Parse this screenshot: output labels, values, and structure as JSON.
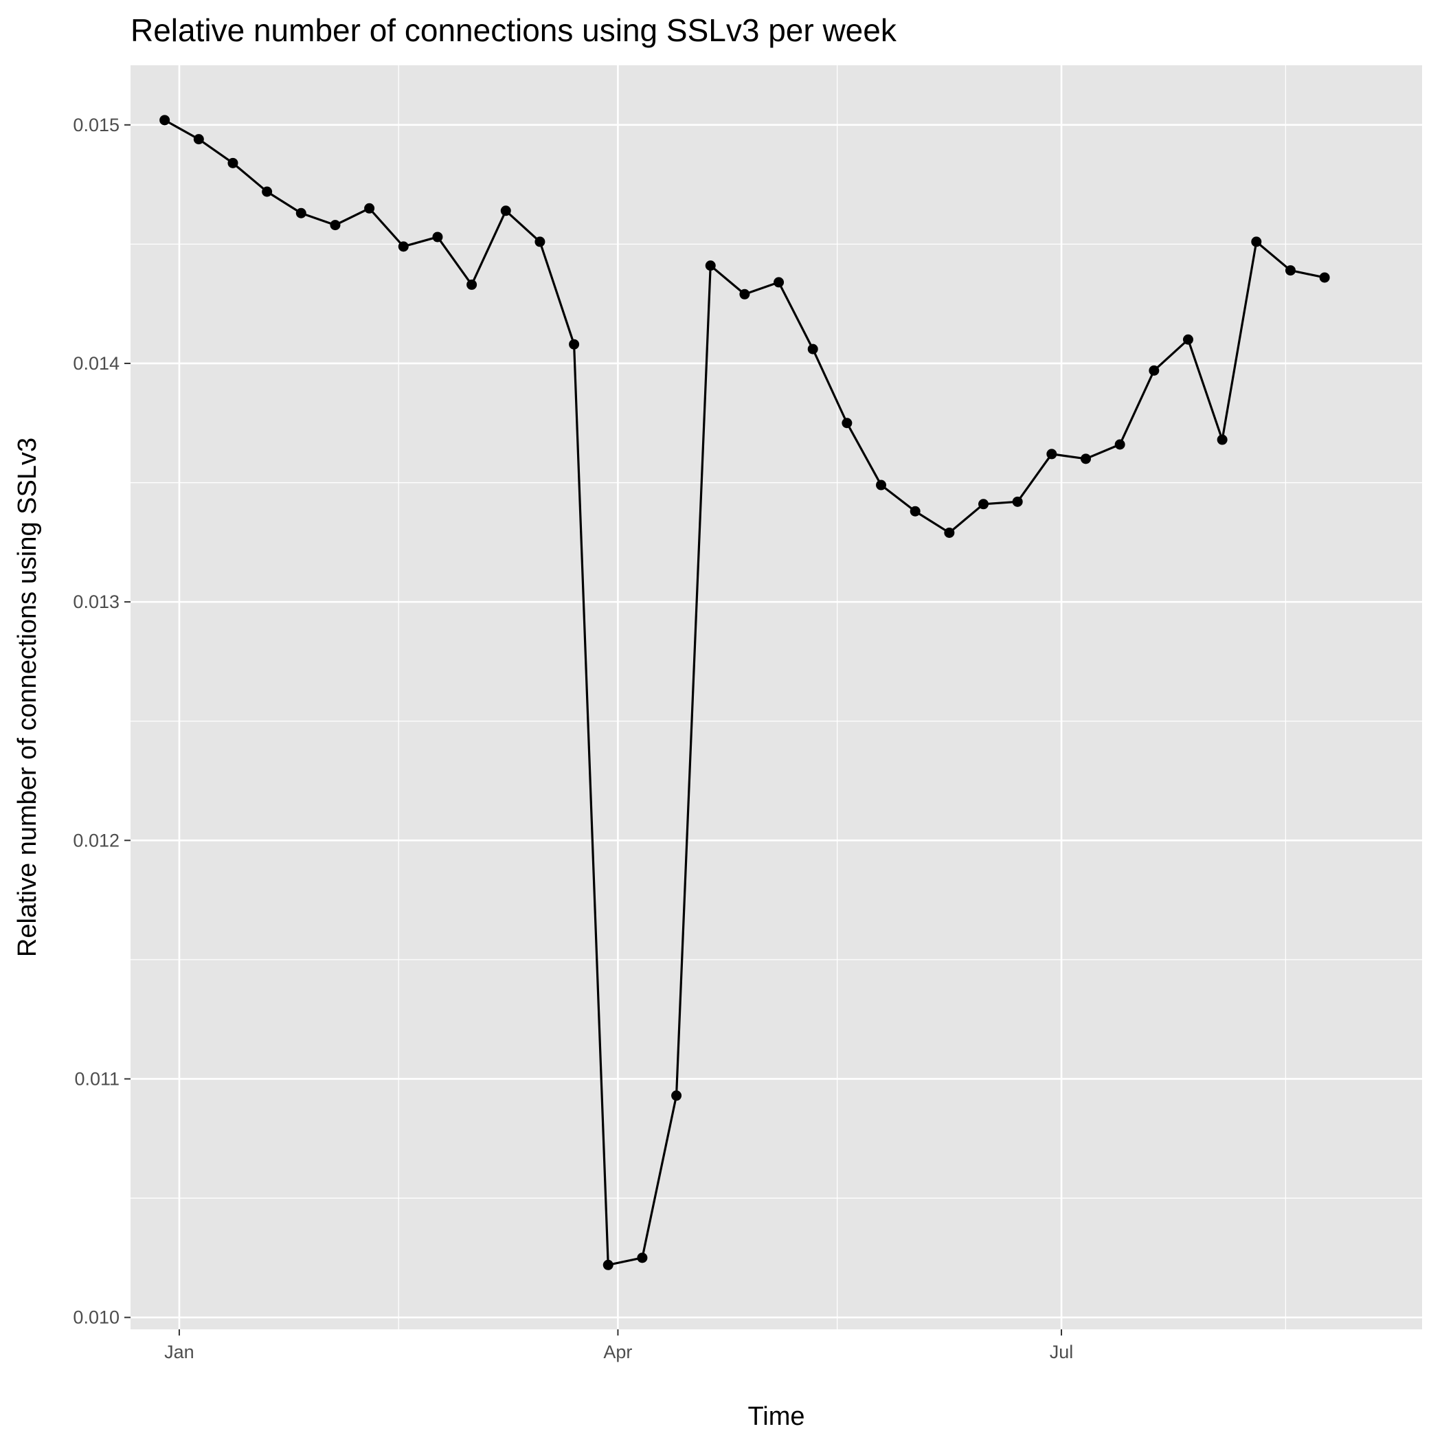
{
  "chart_data": {
    "type": "line",
    "title": "Relative number of connections using SSLv3 per week",
    "xlabel": "Time",
    "ylabel": "Relative number of connections using SSLv3",
    "x_ticks": [
      {
        "label": "Jan",
        "date": "2015-01-01"
      },
      {
        "label": "Apr",
        "date": "2015-04-01"
      },
      {
        "label": "Jul",
        "date": "2015-07-01"
      }
    ],
    "x_minor_ticks": [
      "2015-02-15",
      "2015-05-16",
      "2015-08-16"
    ],
    "xlim": [
      "2014-12-22",
      "2015-09-13"
    ],
    "y_ticks": [
      "0.010",
      "0.011",
      "0.012",
      "0.013",
      "0.014",
      "0.015"
    ],
    "ylim": [
      0.00995,
      0.01525
    ],
    "grid": true,
    "background": "#e5e5e5",
    "grid_color": "#ffffff",
    "line_color": "#000000",
    "point_color": "#000000",
    "series": [
      {
        "points": [
          {
            "x": "2014-12-29",
            "y": 0.01502
          },
          {
            "x": "2015-01-05",
            "y": 0.01494
          },
          {
            "x": "2015-01-12",
            "y": 0.01484
          },
          {
            "x": "2015-01-19",
            "y": 0.01472
          },
          {
            "x": "2015-01-26",
            "y": 0.01463
          },
          {
            "x": "2015-02-02",
            "y": 0.01458
          },
          {
            "x": "2015-02-09",
            "y": 0.01465
          },
          {
            "x": "2015-02-16",
            "y": 0.01449
          },
          {
            "x": "2015-02-23",
            "y": 0.01453
          },
          {
            "x": "2015-03-02",
            "y": 0.01433
          },
          {
            "x": "2015-03-09",
            "y": 0.01464
          },
          {
            "x": "2015-03-16",
            "y": 0.01451
          },
          {
            "x": "2015-03-23",
            "y": 0.01408
          },
          {
            "x": "2015-03-30",
            "y": 0.01022
          },
          {
            "x": "2015-04-06",
            "y": 0.01025
          },
          {
            "x": "2015-04-13",
            "y": 0.01093
          },
          {
            "x": "2015-04-20",
            "y": 0.01441
          },
          {
            "x": "2015-04-27",
            "y": 0.01429
          },
          {
            "x": "2015-05-04",
            "y": 0.01434
          },
          {
            "x": "2015-05-11",
            "y": 0.01406
          },
          {
            "x": "2015-05-18",
            "y": 0.01375
          },
          {
            "x": "2015-05-25",
            "y": 0.01349
          },
          {
            "x": "2015-06-01",
            "y": 0.01338
          },
          {
            "x": "2015-06-08",
            "y": 0.01329
          },
          {
            "x": "2015-06-15",
            "y": 0.01341
          },
          {
            "x": "2015-06-22",
            "y": 0.01342
          },
          {
            "x": "2015-06-29",
            "y": 0.01362
          },
          {
            "x": "2015-07-06",
            "y": 0.0136
          },
          {
            "x": "2015-07-13",
            "y": 0.01366
          },
          {
            "x": "2015-07-20",
            "y": 0.01397
          },
          {
            "x": "2015-07-27",
            "y": 0.0141
          },
          {
            "x": "2015-08-03",
            "y": 0.01368
          },
          {
            "x": "2015-08-10",
            "y": 0.01451
          },
          {
            "x": "2015-08-17",
            "y": 0.01439
          },
          {
            "x": "2015-08-24",
            "y": 0.01436
          }
        ]
      }
    ]
  }
}
